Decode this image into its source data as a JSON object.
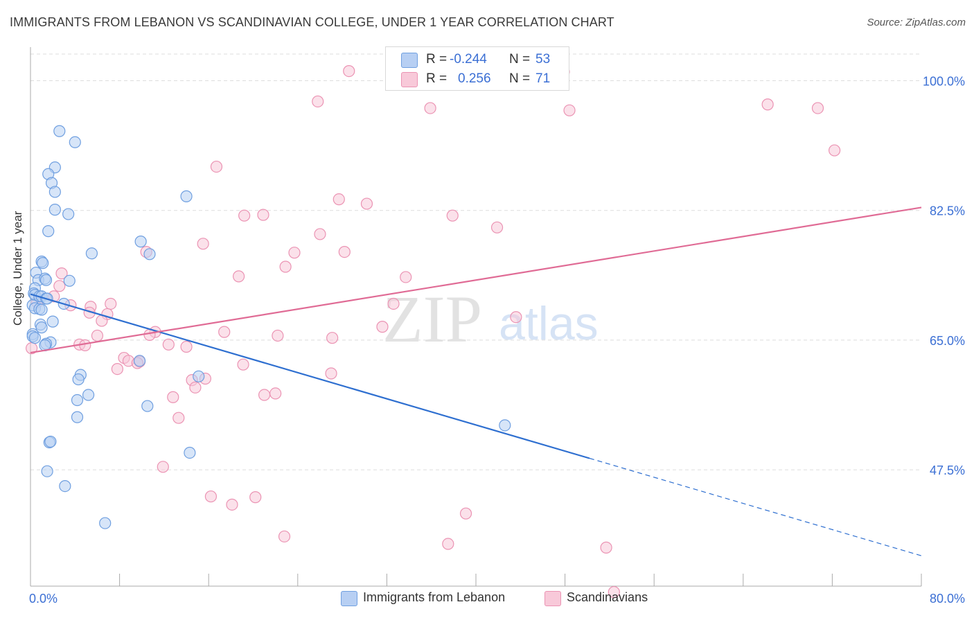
{
  "header": {
    "title": "IMMIGRANTS FROM LEBANON VS SCANDINAVIAN COLLEGE, UNDER 1 YEAR CORRELATION CHART",
    "source": "Source: ZipAtlas.com"
  },
  "watermark": {
    "zip": "ZIP",
    "atlas": "atlas"
  },
  "legend_top": {
    "rows": [
      {
        "r_label": "R =",
        "r_value": "-0.244",
        "n_label": "N =",
        "n_value": "53"
      },
      {
        "r_label": "R =",
        "r_value": "0.256",
        "n_label": "N =",
        "n_value": "71"
      }
    ]
  },
  "legend_bottom": {
    "items": [
      {
        "label": "Immigrants from Lebanon"
      },
      {
        "label": "Scandinavians"
      }
    ]
  },
  "colors": {
    "blue_fill": "#b7cff3",
    "blue_stroke": "#6f9fe0",
    "blue_line": "#2e6fd0",
    "pink_fill": "#f8c9d9",
    "pink_stroke": "#eb93b3",
    "pink_line": "#e06b95",
    "tick_text": "#3b6fd4",
    "grid": "#dddddd"
  },
  "chart_data": {
    "type": "scatter",
    "title": "IMMIGRANTS FROM LEBANON VS SCANDINAVIAN COLLEGE, UNDER 1 YEAR CORRELATION CHART",
    "xlabel": "",
    "ylabel": "College, Under 1 year",
    "xlim": [
      0,
      80
    ],
    "ylim": [
      31.8,
      103.6
    ],
    "x_tick_labels": [
      "0.0%",
      "80.0%"
    ],
    "y_ticks": [
      47.5,
      65.0,
      82.5,
      100.0
    ],
    "y_tick_labels": [
      "47.5%",
      "65.0%",
      "82.5%",
      "100.0%"
    ],
    "grid": true,
    "legend_position": "bottom",
    "series": [
      {
        "name": "Immigrants from Lebanon",
        "color": "#6f9fe0",
        "R": -0.244,
        "N": 53,
        "trend": {
          "x0": 0,
          "y0": 71.2,
          "x_solid_end": 50.2,
          "x1": 80,
          "y1": 35.9
        },
        "points": [
          [
            2.6,
            93.2
          ],
          [
            4.0,
            91.7
          ],
          [
            2.2,
            88.3
          ],
          [
            1.6,
            87.4
          ],
          [
            1.9,
            86.2
          ],
          [
            2.2,
            85.0
          ],
          [
            14.0,
            84.4
          ],
          [
            2.2,
            82.6
          ],
          [
            3.4,
            82.0
          ],
          [
            1.6,
            79.7
          ],
          [
            9.9,
            78.3
          ],
          [
            5.5,
            76.7
          ],
          [
            10.7,
            76.6
          ],
          [
            1.0,
            75.6
          ],
          [
            1.1,
            75.4
          ],
          [
            0.5,
            74.1
          ],
          [
            0.7,
            73.1
          ],
          [
            1.3,
            73.3
          ],
          [
            1.4,
            73.1
          ],
          [
            3.5,
            73.0
          ],
          [
            0.4,
            72.0
          ],
          [
            0.3,
            71.3
          ],
          [
            0.4,
            71.1
          ],
          [
            0.8,
            70.9
          ],
          [
            1.0,
            70.9
          ],
          [
            1.4,
            70.6
          ],
          [
            1.5,
            70.6
          ],
          [
            3.0,
            69.9
          ],
          [
            0.2,
            69.7
          ],
          [
            0.4,
            69.3
          ],
          [
            0.8,
            69.2
          ],
          [
            1.0,
            69.1
          ],
          [
            2.0,
            67.5
          ],
          [
            0.9,
            67.1
          ],
          [
            1.0,
            66.7
          ],
          [
            0.2,
            65.8
          ],
          [
            0.2,
            65.5
          ],
          [
            0.4,
            65.3
          ],
          [
            1.8,
            64.7
          ],
          [
            1.4,
            64.5
          ],
          [
            1.3,
            64.3
          ],
          [
            9.8,
            62.2
          ],
          [
            15.1,
            60.1
          ],
          [
            4.5,
            60.3
          ],
          [
            4.3,
            59.7
          ],
          [
            5.2,
            57.6
          ],
          [
            4.2,
            56.9
          ],
          [
            10.5,
            56.1
          ],
          [
            4.2,
            54.6
          ],
          [
            42.6,
            53.5
          ],
          [
            1.7,
            51.2
          ],
          [
            1.8,
            51.3
          ],
          [
            14.3,
            49.8
          ],
          [
            1.5,
            47.3
          ],
          [
            3.1,
            45.3
          ],
          [
            6.7,
            40.3
          ]
        ]
      },
      {
        "name": "Scandinavians",
        "color": "#eb93b3",
        "R": 0.256,
        "N": 71,
        "trend": {
          "x0": 0,
          "y0": 63.3,
          "x1": 80,
          "y1": 82.9
        },
        "points": [
          [
            28.6,
            101.3
          ],
          [
            47.9,
            101.2
          ],
          [
            25.8,
            97.2
          ],
          [
            35.9,
            96.3
          ],
          [
            48.4,
            96.0
          ],
          [
            66.2,
            96.8
          ],
          [
            70.7,
            96.3
          ],
          [
            72.2,
            90.6
          ],
          [
            16.7,
            88.4
          ],
          [
            27.7,
            84.0
          ],
          [
            30.2,
            83.4
          ],
          [
            19.2,
            81.8
          ],
          [
            20.9,
            81.9
          ],
          [
            37.9,
            81.8
          ],
          [
            41.9,
            80.2
          ],
          [
            26.0,
            79.3
          ],
          [
            15.5,
            78.0
          ],
          [
            10.4,
            76.9
          ],
          [
            23.7,
            76.8
          ],
          [
            28.2,
            76.9
          ],
          [
            22.9,
            74.9
          ],
          [
            2.8,
            74.0
          ],
          [
            18.7,
            73.6
          ],
          [
            33.7,
            73.5
          ],
          [
            2.6,
            72.3
          ],
          [
            2.1,
            70.9
          ],
          [
            3.6,
            69.7
          ],
          [
            32.6,
            69.9
          ],
          [
            0.6,
            70.1
          ],
          [
            5.4,
            69.5
          ],
          [
            7.2,
            69.9
          ],
          [
            5.3,
            68.7
          ],
          [
            6.9,
            68.5
          ],
          [
            43.6,
            68.1
          ],
          [
            6.4,
            67.6
          ],
          [
            31.6,
            66.8
          ],
          [
            17.4,
            66.1
          ],
          [
            11.2,
            66.1
          ],
          [
            10.7,
            65.7
          ],
          [
            6.0,
            65.6
          ],
          [
            22.2,
            65.6
          ],
          [
            27.1,
            65.3
          ],
          [
            4.4,
            64.4
          ],
          [
            4.9,
            64.3
          ],
          [
            12.4,
            64.4
          ],
          [
            14.0,
            64.1
          ],
          [
            0.1,
            63.9
          ],
          [
            8.4,
            62.6
          ],
          [
            8.8,
            62.2
          ],
          [
            9.8,
            62.1
          ],
          [
            9.6,
            61.9
          ],
          [
            19.1,
            61.7
          ],
          [
            7.8,
            61.1
          ],
          [
            27.0,
            60.5
          ],
          [
            14.5,
            59.6
          ],
          [
            15.7,
            59.8
          ],
          [
            14.8,
            58.6
          ],
          [
            21.0,
            57.6
          ],
          [
            22.0,
            57.8
          ],
          [
            12.8,
            57.3
          ],
          [
            13.3,
            54.5
          ],
          [
            11.9,
            47.9
          ],
          [
            16.2,
            43.9
          ],
          [
            20.2,
            43.8
          ],
          [
            18.1,
            42.8
          ],
          [
            39.1,
            41.6
          ],
          [
            22.8,
            38.5
          ],
          [
            37.5,
            37.5
          ],
          [
            51.7,
            37.0
          ],
          [
            52.4,
            31.0
          ]
        ]
      }
    ]
  }
}
